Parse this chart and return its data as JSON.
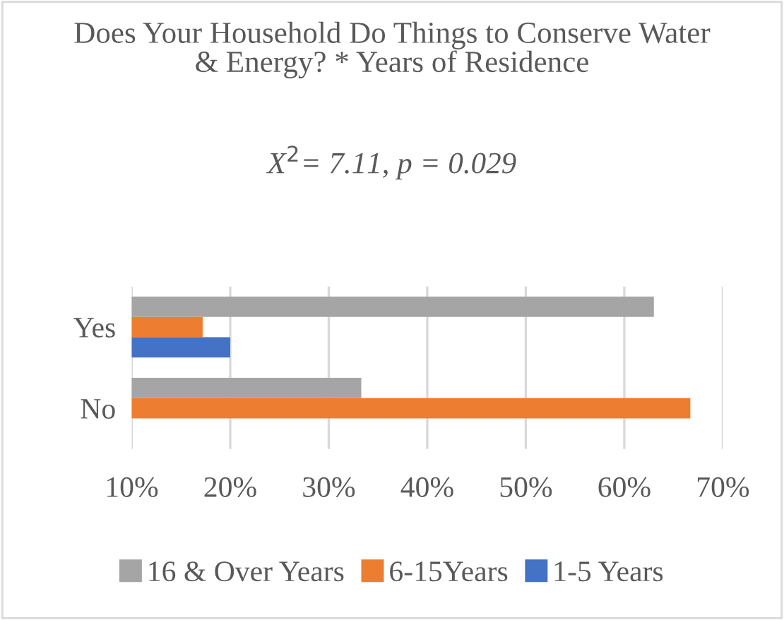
{
  "chart_data": {
    "type": "bar",
    "orientation": "horizontal",
    "title": "Does Your Household Do Things to Conserve Water & Energy? * Years of Residence",
    "subtitle": "X$^{2}$= 7.11, p = 0.029",
    "categories": [
      "Yes",
      "No"
    ],
    "series": [
      {
        "name": "16 & Over Years",
        "color": "#a5a5a5",
        "values": [
          63,
          33.3
        ]
      },
      {
        "name": "6-15Years",
        "color": "#ed7d31",
        "values": [
          17.2,
          66.7
        ]
      },
      {
        "name": "1-5 Years",
        "color": "#4472c4",
        "values": [
          20,
          null
        ]
      }
    ],
    "xlim": [
      10,
      70
    ],
    "xticks": [
      {
        "value": 10,
        "label": "10%"
      },
      {
        "value": 20,
        "label": "20%"
      },
      {
        "value": 30,
        "label": "30%"
      },
      {
        "value": 40,
        "label": "40%"
      },
      {
        "value": 50,
        "label": "50%"
      },
      {
        "value": 60,
        "label": "60%"
      },
      {
        "value": 70,
        "label": "70%"
      }
    ],
    "grid": "x",
    "legend": "bottom"
  }
}
